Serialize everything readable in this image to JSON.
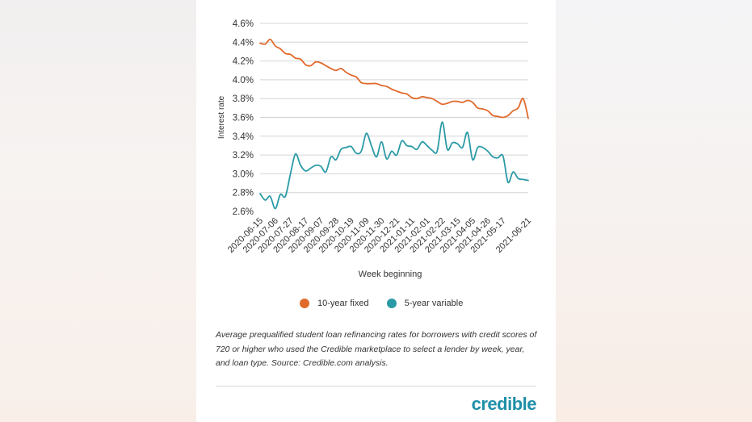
{
  "chart_data": {
    "type": "line",
    "ylabel": "Interest rate",
    "xlabel": "Week beginning",
    "ylim": [
      2.6,
      4.6
    ],
    "yticks": [
      "2.6%",
      "2.8%",
      "3.0%",
      "3.2%",
      "3.4%",
      "3.6%",
      "3.8%",
      "4.0%",
      "4.2%",
      "4.4%",
      "4.6%"
    ],
    "xtick_labels": [
      "2020-06-15",
      "2020-07-06",
      "2020-07-27",
      "2020-08-17",
      "2020-09-07",
      "2020-09-28",
      "2020-10-19",
      "2020-11-09",
      "2020-11-30",
      "2020-12-21",
      "2021-01-11",
      "2021-02-01",
      "2021-02-22",
      "2021-03-15",
      "2021-04-05",
      "2021-04-26",
      "2021-05-17",
      "2021-06-21"
    ],
    "x_weeks": [
      "2020-06-15",
      "2020-06-22",
      "2020-06-29",
      "2020-07-06",
      "2020-07-13",
      "2020-07-20",
      "2020-07-27",
      "2020-08-03",
      "2020-08-10",
      "2020-08-17",
      "2020-08-24",
      "2020-08-31",
      "2020-09-07",
      "2020-09-14",
      "2020-09-21",
      "2020-09-28",
      "2020-10-05",
      "2020-10-12",
      "2020-10-19",
      "2020-10-26",
      "2020-11-02",
      "2020-11-09",
      "2020-11-16",
      "2020-11-23",
      "2020-11-30",
      "2020-12-07",
      "2020-12-14",
      "2020-12-21",
      "2020-12-28",
      "2021-01-04",
      "2021-01-11",
      "2021-01-18",
      "2021-01-25",
      "2021-02-01",
      "2021-02-08",
      "2021-02-15",
      "2021-02-22",
      "2021-03-01",
      "2021-03-08",
      "2021-03-15",
      "2021-03-22",
      "2021-03-29",
      "2021-04-05",
      "2021-04-12",
      "2021-04-19",
      "2021-04-26",
      "2021-05-03",
      "2021-05-10",
      "2021-05-17",
      "2021-05-24",
      "2021-05-31",
      "2021-06-07",
      "2021-06-14",
      "2021-06-21"
    ],
    "series": [
      {
        "name": "10-year fixed",
        "color": "#e06a2c",
        "values": [
          4.39,
          4.38,
          4.43,
          4.36,
          4.33,
          4.28,
          4.27,
          4.23,
          4.22,
          4.16,
          4.15,
          4.19,
          4.18,
          4.15,
          4.12,
          4.1,
          4.12,
          4.08,
          4.05,
          4.03,
          3.97,
          3.96,
          3.96,
          3.96,
          3.94,
          3.93,
          3.9,
          3.88,
          3.86,
          3.85,
          3.81,
          3.8,
          3.82,
          3.81,
          3.8,
          3.77,
          3.74,
          3.75,
          3.77,
          3.77,
          3.76,
          3.78,
          3.76,
          3.7,
          3.69,
          3.67,
          3.62,
          3.61,
          3.6,
          3.62,
          3.67,
          3.7,
          3.8,
          3.59
        ]
      },
      {
        "name": "5-year variable",
        "color": "#2a9aa6",
        "values": [
          2.79,
          2.72,
          2.76,
          2.63,
          2.78,
          2.76,
          3.0,
          3.21,
          3.09,
          3.03,
          3.06,
          3.09,
          3.08,
          3.02,
          3.18,
          3.15,
          3.26,
          3.28,
          3.29,
          3.22,
          3.24,
          3.43,
          3.3,
          3.18,
          3.34,
          3.16,
          3.24,
          3.2,
          3.35,
          3.3,
          3.29,
          3.26,
          3.34,
          3.3,
          3.25,
          3.24,
          3.55,
          3.26,
          3.33,
          3.32,
          3.28,
          3.44,
          3.15,
          3.28,
          3.28,
          3.24,
          3.18,
          3.17,
          3.19,
          2.91,
          3.02,
          2.95,
          2.94,
          2.93
        ]
      }
    ],
    "grid": true,
    "legend": "bottom"
  },
  "caption": "Average prequalified student loan refinancing rates for borrowers with credit scores of 720 or higher who used the Credible marketplace to select a lender by week, year, and loan type. Source: Credible.com analysis.",
  "logo_text": "credible"
}
